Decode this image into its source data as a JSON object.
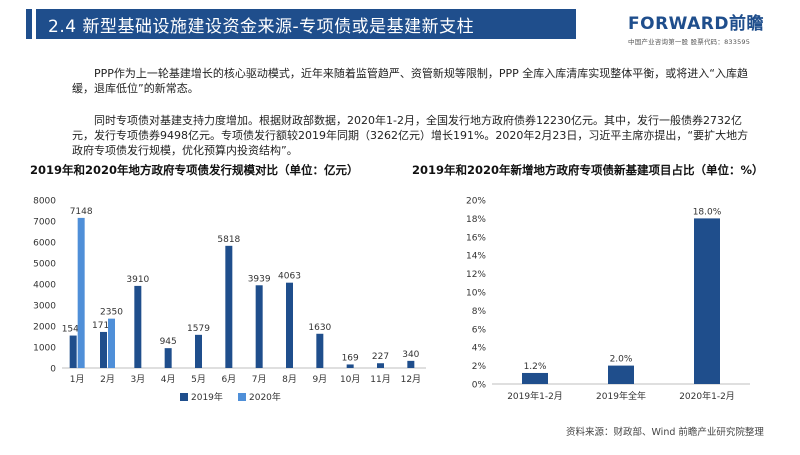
{
  "header": {
    "title": "2.4  新型基础设施建设资金来源-专项债或是基建新支柱",
    "brand_name": "FORWARD前瞻",
    "brand_tag": "中国产业咨询第一股  股票代码：833595"
  },
  "paragraphs": [
    "PPP作为上一轮基建增长的核心驱动模式，近年来随着监管趋严、资管新规等限制，PPP 全库入库清库实现整体平衡，或将进入“入库趋缓，退库低位”的新常态。",
    "同时专项债对基建支持力度增加。根据财政部数据，2020年1-2月，全国发行地方政府债券12230亿元。其中，发行一般债券2732亿元，发行专项债券9498亿元。专项债发行额较2019年同期（3262亿元）增长191%。2020年2月23日，习近平主席亦提出，“要扩大地方政府专项债发行规模，优化预算内投资结构”。"
  ],
  "source": "资料来源：财政部、Wind 前瞻产业研究院整理",
  "chart_data": [
    {
      "type": "bar",
      "title": "2019年和2020年地方政府专项债发行规模对比（单位：亿元）",
      "categories": [
        "1月",
        "2月",
        "3月",
        "4月",
        "5月",
        "6月",
        "7月",
        "8月",
        "9月",
        "10月",
        "11月",
        "12月"
      ],
      "series": [
        {
          "name": "2019年",
          "color": "#1f4e8c",
          "values": [
            1545,
            1717,
            3910,
            945,
            1579,
            5818,
            3939,
            4063,
            1630,
            169,
            227,
            340
          ]
        },
        {
          "name": "2020年",
          "color": "#4f8fd8",
          "values": [
            7148,
            2350,
            null,
            null,
            null,
            null,
            null,
            null,
            null,
            null,
            null,
            null
          ]
        }
      ],
      "ylim": [
        0,
        8000
      ],
      "yticks": [
        "0",
        "1000",
        "2000",
        "3000",
        "4000",
        "5000",
        "6000",
        "7000",
        "8000"
      ],
      "grid": false,
      "legend": "bottom-center"
    },
    {
      "type": "bar",
      "title": "2019年和2020年新增地方政府专项债新基建项目占比（单位：%）",
      "categories": [
        "2019年1-2月",
        "2019年全年",
        "2020年1-2月"
      ],
      "values": [
        1.2,
        2.0,
        18.0
      ],
      "labels": [
        "1.2%",
        "2.0%",
        "18.0%"
      ],
      "color": "#1f4e8c",
      "ylim": [
        0,
        20
      ],
      "yticks": [
        "0%",
        "2%",
        "4%",
        "6%",
        "8%",
        "10%",
        "12%",
        "14%",
        "16%",
        "18%",
        "20%"
      ],
      "grid": false,
      "legend": "none"
    }
  ]
}
